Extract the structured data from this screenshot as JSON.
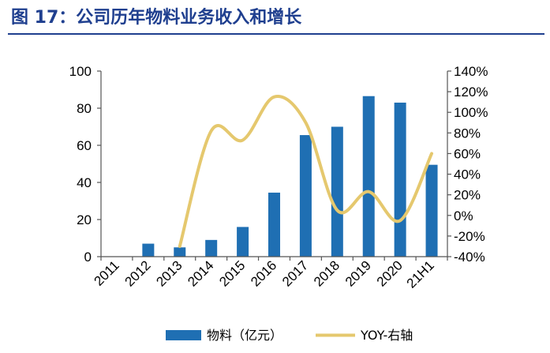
{
  "title": "图 17：公司历年物料业务收入和增长",
  "chart_data": {
    "type": "bar",
    "categories": [
      "2011",
      "2012",
      "2013",
      "2014",
      "2015",
      "2016",
      "2017",
      "2018",
      "2019",
      "2020",
      "21H1"
    ],
    "series": [
      {
        "name": "物料（亿元）",
        "type": "bar",
        "axis": "left",
        "color": "#1f6fb3",
        "values": [
          0,
          7,
          5,
          9,
          16,
          34.5,
          65.5,
          70,
          86.5,
          83,
          49.5
        ]
      },
      {
        "name": "YOY-右轴",
        "type": "line",
        "axis": "right",
        "color": "#e5c86e",
        "values": [
          null,
          null,
          -30,
          82,
          73,
          115,
          90,
          5,
          23,
          -5,
          60
        ]
      }
    ],
    "ylim_left": [
      0,
      100
    ],
    "yticks_left": [
      "0",
      "20",
      "40",
      "60",
      "80",
      "100"
    ],
    "ylim_right": [
      -40,
      140
    ],
    "yticks_right": [
      "-40%",
      "-20%",
      "0%",
      "20%",
      "40%",
      "60%",
      "80%",
      "100%",
      "120%",
      "140%"
    ],
    "grid": false,
    "legend": "bottom"
  }
}
